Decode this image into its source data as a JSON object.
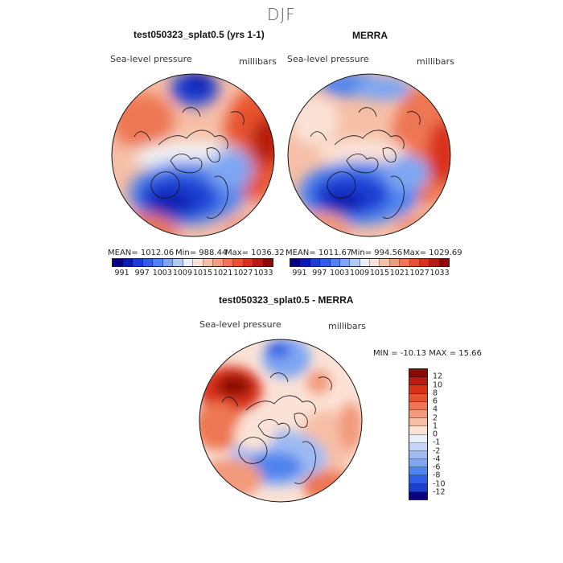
{
  "page": {
    "title": "DJF"
  },
  "panels": [
    {
      "title": "test050323_splat0.5 (yrs 1-1)",
      "variable": "Sea-level pressure",
      "units": "millibars",
      "stats": {
        "mean": "MEAN= 1012.06",
        "min": "Min= 988.44",
        "max": "Max= 1036.32"
      }
    },
    {
      "title": "MERRA",
      "variable": "Sea-level pressure",
      "units": "millibars",
      "stats": {
        "mean": "MEAN= 1011.67",
        "min": "Min= 994.56",
        "max": "Max= 1029.69"
      }
    },
    {
      "title": "test050323_splat0.5 - MERRA",
      "variable": "Sea-level pressure",
      "units": "millibars",
      "stats": {
        "minmax": "MIN = -10.13 MAX =  15.66"
      }
    }
  ],
  "field_colorbar": {
    "colors": [
      "#08037f",
      "#0a1cb0",
      "#1a3fd4",
      "#2e5fe6",
      "#4f84ee",
      "#7ea6f2",
      "#b1c9f6",
      "#e8eefa",
      "#fbe2d6",
      "#f6bfa6",
      "#f29a7a",
      "#ee7752",
      "#e8532e",
      "#d9321a",
      "#b51d10",
      "#8a0b05"
    ],
    "tick_labels": [
      "991",
      "997",
      "1003",
      "1009",
      "1015",
      "1021",
      "1027",
      "1033"
    ]
  },
  "diff_colorbar": {
    "colors": [
      "#8a0b05",
      "#b51d10",
      "#d9321a",
      "#e8532e",
      "#ee7752",
      "#f29a7a",
      "#f6bfa6",
      "#fbe2d6",
      "#e8eefa",
      "#c5d6f7",
      "#9dbaf3",
      "#7ea6f2",
      "#4f84ee",
      "#2e5fe6",
      "#1a3fd4",
      "#08037f"
    ],
    "tick_labels": [
      "12",
      "10",
      "8",
      "6",
      "4",
      "2",
      "1",
      "0",
      "-1",
      "-2",
      "-4",
      "-6",
      "-8",
      "-10",
      "-12"
    ]
  },
  "map_colors": {
    "deep_blue": "#0a1cb0",
    "blue": "#2e5fe6",
    "light_blue": "#7ea6f2",
    "pale_blue": "#c5d6f7",
    "white": "#f3f3f3",
    "pale_red": "#f6bfa6",
    "orange": "#ee7752",
    "red": "#d9321a",
    "dark_red": "#8a0b05"
  }
}
